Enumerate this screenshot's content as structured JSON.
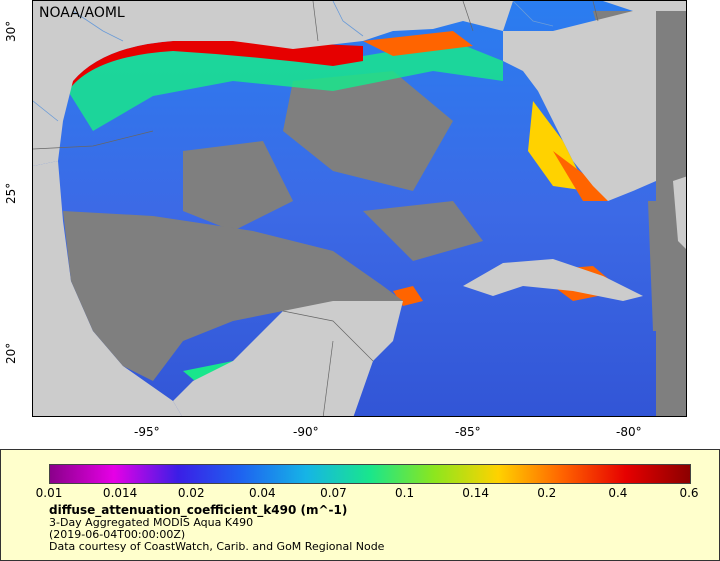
{
  "map": {
    "credit": "NOAA/AOML",
    "x_ticks": [
      "-95°",
      "-90°",
      "-85°",
      "-80°"
    ],
    "y_ticks": [
      "30°",
      "25°",
      "20°"
    ],
    "colors": {
      "land": "#cccccc",
      "nodata": "#7f7f7f",
      "border": "#666666",
      "river": "#6a9bd8"
    }
  },
  "legend": {
    "colorbar_ticks": [
      "0.01",
      "0.014",
      "0.02",
      "0.04",
      "0.07",
      "0.1",
      "0.14",
      "0.2",
      "0.4",
      "0.6"
    ],
    "colorbar_colors": [
      "#8a008a",
      "#e600e6",
      "#3b1ee6",
      "#1e64f0",
      "#16b4e6",
      "#19e68c",
      "#8ce61e",
      "#ffd200",
      "#ff6400",
      "#e60000",
      "#8c0000"
    ],
    "variable": "diffuse_attenuation_coefficient_k490 (m^-1)",
    "line1": "3-Day Aggregated MODIS Aqua K490",
    "line2": "(2019-06-04T00:00:00Z)",
    "line3": "Data courtesy of CoastWatch, Carib. and GoM Regional Node"
  }
}
